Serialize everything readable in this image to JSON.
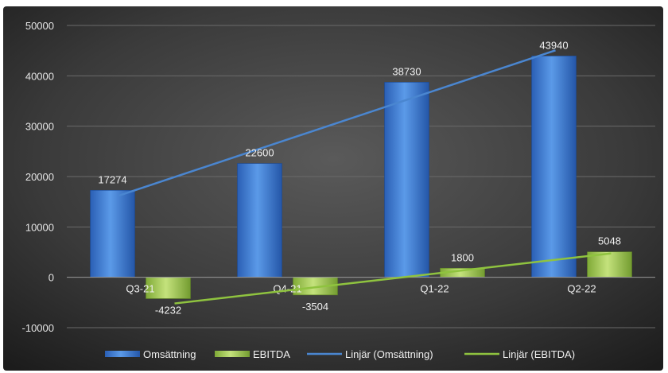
{
  "chart_data": {
    "type": "bar",
    "categories": [
      "Q3-21",
      "Q4-21",
      "Q1-22",
      "Q2-22"
    ],
    "series": [
      {
        "name": "Omsättning",
        "values": [
          17274,
          22600,
          38730,
          43940
        ],
        "color": "#3f7fd9"
      },
      {
        "name": "EBITDA",
        "values": [
          -4232,
          -3504,
          1800,
          5048
        ],
        "color": "#a6cf5a"
      }
    ],
    "trendlines": [
      {
        "name": "Linjär (Omsättning)",
        "series": "Omsättning",
        "type": "linear",
        "color": "#4a86d0"
      },
      {
        "name": "Linjär (EBITDA)",
        "series": "EBITDA",
        "type": "linear",
        "color": "#8fc33f"
      }
    ],
    "data_labels": {
      "Omsättning": [
        "17274",
        "22600",
        "38730",
        "43940"
      ],
      "EBITDA": [
        "-4232",
        "-3504",
        "1800",
        "5048"
      ]
    },
    "yticks": [
      "50000",
      "40000",
      "30000",
      "20000",
      "10000",
      "0",
      "-10000"
    ],
    "ylim": [
      -10000,
      50000
    ],
    "grid": true,
    "legend_position": "bottom",
    "background": "dark-gradient",
    "title": "",
    "xlabel": "",
    "ylabel": ""
  }
}
